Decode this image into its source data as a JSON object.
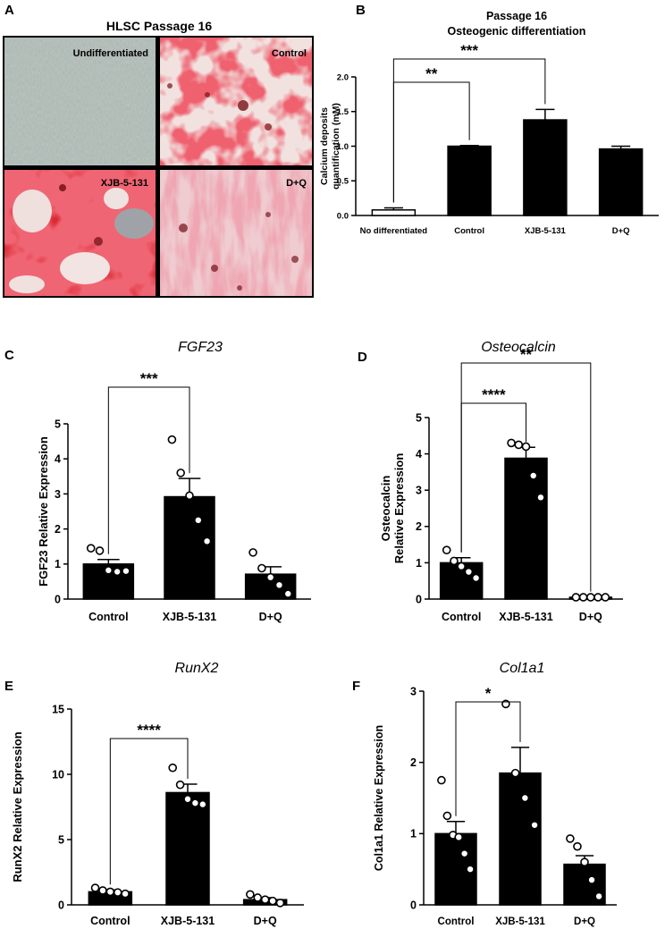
{
  "figure": {
    "panel_a": {
      "letter": "A",
      "title": "HLSC Passage 16",
      "images": [
        {
          "label": "Undifferentiated",
          "texture": "gray-cells"
        },
        {
          "label": "Control",
          "texture": "red-stain"
        },
        {
          "label": "XJB-5-131",
          "texture": "red-stain-dense"
        },
        {
          "label": "D+Q",
          "texture": "pink-stain"
        }
      ]
    },
    "colors": {
      "bar": "#000000",
      "stain_red": "#e0262e",
      "stain_pink": "#e89ba4",
      "phase_gray": "#9aa5a0"
    }
  },
  "chart_data": [
    {
      "panel": "B",
      "type": "bar",
      "title": [
        "Passage 16",
        "Osteogenic differentiation"
      ],
      "ylabel": [
        "Calcium deposits",
        "quantification (mM)"
      ],
      "categories": [
        "No differentiated",
        "Control",
        "XJB-5-131",
        "D+Q"
      ],
      "values": [
        0.08,
        1.0,
        1.38,
        0.96
      ],
      "errors": [
        0.03,
        0.01,
        0.15,
        0.04
      ],
      "bar_fill": [
        "#ffffff",
        "#000000",
        "#000000",
        "#000000"
      ],
      "ylim": [
        0,
        2.0
      ],
      "yticks": [
        "0.0",
        "0.5",
        "1.0",
        "1.5",
        "2.0"
      ],
      "points": [],
      "significance": [
        {
          "from": 0,
          "to": 1,
          "label": "**"
        },
        {
          "from": 0,
          "to": 2,
          "label": "***"
        }
      ]
    },
    {
      "panel": "C",
      "type": "bar",
      "title": [
        "FGF23"
      ],
      "ylabel": [
        "FGF23 Relative Expression"
      ],
      "categories": [
        "Control",
        "XJB-5-131",
        "D+Q"
      ],
      "values": [
        1.0,
        2.92,
        0.71
      ],
      "errors": [
        0.13,
        0.52,
        0.21
      ],
      "ylim": [
        0,
        5
      ],
      "yticks": [
        "0",
        "1",
        "2",
        "3",
        "4",
        "5"
      ],
      "points": [
        [
          1.45,
          1.38,
          0.82,
          0.78,
          0.8
        ],
        [
          4.55,
          3.6,
          2.95,
          2.25,
          1.65
        ],
        [
          1.33,
          0.88,
          0.62,
          0.4,
          0.15
        ]
      ],
      "significance": [
        {
          "from": 0,
          "to": 1,
          "label": "***"
        }
      ]
    },
    {
      "panel": "D",
      "type": "bar",
      "title": [
        "Osteocalcin"
      ],
      "ylabel": [
        "Osteocalcin",
        "Relative Expression"
      ],
      "categories": [
        "Control",
        "XJB-5-131",
        "D+Q"
      ],
      "values": [
        1.0,
        3.88,
        0.05
      ],
      "errors": [
        0.14,
        0.3,
        0.01
      ],
      "ylim": [
        0,
        5
      ],
      "yticks": [
        "0",
        "1",
        "2",
        "3",
        "4",
        "5"
      ],
      "points": [
        [
          1.35,
          1.05,
          0.9,
          0.75,
          0.58
        ],
        [
          4.3,
          4.25,
          4.2,
          3.4,
          2.8
        ],
        [
          0.05,
          0.05,
          0.05,
          0.05,
          0.05
        ]
      ],
      "significance": [
        {
          "from": 0,
          "to": 1,
          "label": "****"
        },
        {
          "from": 0,
          "to": 2,
          "label": "**"
        }
      ]
    },
    {
      "panel": "E",
      "type": "bar",
      "title": [
        "RunX2"
      ],
      "ylabel": [
        "RunX2 Relative Expression"
      ],
      "categories": [
        "Control",
        "XJB-5-131",
        "D+Q"
      ],
      "values": [
        1.0,
        8.6,
        0.4
      ],
      "errors": [
        0.15,
        0.65,
        0.15
      ],
      "ylim": [
        0,
        15
      ],
      "yticks": [
        "0",
        "5",
        "10",
        "15"
      ],
      "points": [
        [
          1.3,
          1.1,
          1.0,
          0.95,
          0.85
        ],
        [
          10.5,
          9.2,
          8.1,
          7.8,
          7.7
        ],
        [
          0.8,
          0.55,
          0.4,
          0.3,
          0.15
        ]
      ],
      "significance": [
        {
          "from": 0,
          "to": 1,
          "label": "****"
        }
      ]
    },
    {
      "panel": "F",
      "type": "bar",
      "title": [
        "Col1a1"
      ],
      "ylabel": [
        "Col1a1 Relative Expression"
      ],
      "categories": [
        "Control",
        "XJB-5-131",
        "D+Q"
      ],
      "values": [
        1.0,
        1.85,
        0.57
      ],
      "errors": [
        0.17,
        0.36,
        0.12
      ],
      "ylim": [
        0,
        3
      ],
      "yticks": [
        "0",
        "1",
        "2",
        "3"
      ],
      "points": [
        [
          1.75,
          1.25,
          0.98,
          0.95,
          0.72,
          0.5
        ],
        [
          2.82,
          1.85,
          1.5,
          1.12
        ],
        [
          0.93,
          0.82,
          0.6,
          0.35,
          0.12
        ]
      ],
      "significance": [
        {
          "from": 0,
          "to": 1,
          "label": "*"
        }
      ]
    }
  ]
}
